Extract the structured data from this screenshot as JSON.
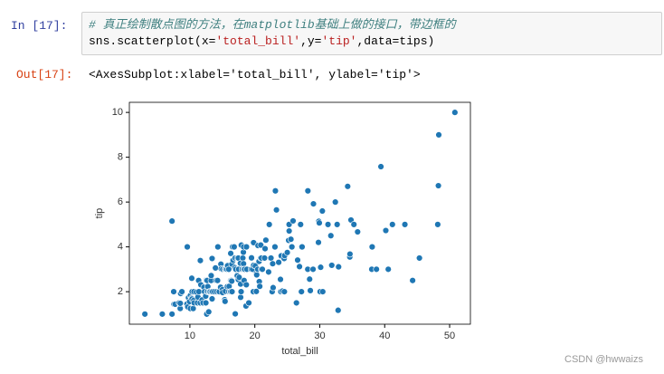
{
  "cells": {
    "in_prompt": "In  [17]:",
    "comment": "# 真正绘制散点图的方法，在matplotlib基础上做的接口，带边框的",
    "code_tokens": [
      "sns.scatterplot(x=",
      "'total_bill'",
      ",y=",
      "'tip'",
      ",data=tips)"
    ],
    "out_prompt": "Out[17]:",
    "output": "<AxesSubplot:xlabel='total_bill', ylabel='tip'>"
  },
  "watermark": "CSDN @hwwaizs",
  "chart_data": {
    "type": "scatter",
    "x_label": "total_bill",
    "y_label": "tip",
    "color": "#1f77b4",
    "xlim": [
      0.68,
      53.2
    ],
    "ylim": [
      0.55,
      10.45
    ],
    "xticks": [
      10,
      20,
      30,
      40,
      50
    ],
    "yticks": [
      2,
      4,
      6,
      8,
      10
    ],
    "x": [
      3.07,
      5.75,
      7.25,
      7.25,
      7.51,
      7.56,
      7.74,
      8.35,
      8.51,
      8.52,
      8.58,
      8.77,
      9.55,
      9.6,
      9.68,
      9.78,
      9.94,
      10.07,
      10.07,
      10.27,
      10.29,
      10.33,
      10.34,
      10.51,
      10.59,
      10.63,
      10.65,
      11.02,
      11.17,
      11.24,
      11.35,
      11.38,
      11.59,
      11.61,
      11.69,
      11.87,
      12.03,
      12.16,
      12.26,
      12.43,
      12.46,
      12.48,
      12.54,
      12.6,
      12.66,
      12.69,
      12.74,
      12.76,
      12.9,
      13.0,
      13.03,
      13.13,
      13.27,
      13.28,
      13.37,
      13.42,
      13.42,
      13.51,
      13.81,
      13.94,
      14.07,
      14.15,
      14.26,
      14.31,
      14.48,
      14.52,
      14.73,
      14.78,
      14.83,
      15.01,
      15.04,
      15.06,
      15.36,
      15.38,
      15.42,
      15.48,
      15.53,
      15.69,
      15.77,
      15.81,
      15.98,
      16.0,
      16.04,
      16.21,
      16.27,
      16.29,
      16.31,
      16.4,
      16.45,
      16.47,
      16.49,
      16.58,
      16.66,
      16.82,
      16.93,
      16.97,
      16.99,
      17.07,
      17.26,
      17.29,
      17.31,
      17.46,
      17.47,
      17.51,
      17.59,
      17.78,
      17.81,
      17.82,
      17.89,
      17.92,
      18.04,
      18.15,
      18.24,
      18.26,
      18.28,
      18.29,
      18.35,
      18.43,
      18.64,
      18.69,
      18.71,
      18.78,
      19.08,
      19.44,
      19.49,
      19.65,
      19.77,
      19.81,
      19.82,
      20.08,
      20.23,
      20.27,
      20.29,
      20.45,
      20.49,
      20.65,
      20.69,
      20.76,
      20.9,
      20.92,
      21.01,
      21.01,
      21.16,
      21.5,
      21.58,
      21.7,
      22.12,
      22.23,
      22.42,
      22.49,
      22.67,
      22.75,
      22.82,
      23.1,
      23.17,
      23.33,
      23.68,
      23.95,
      24.01,
      24.06,
      24.27,
      24.52,
      24.55,
      24.59,
      25.0,
      25.21,
      25.28,
      25.29,
      25.56,
      25.71,
      25.89,
      26.41,
      26.59,
      26.86,
      26.88,
      27.05,
      27.18,
      27.2,
      27.28,
      28.15,
      28.17,
      28.44,
      28.55,
      28.97,
      29.03,
      29.8,
      29.85,
      29.93,
      30.06,
      30.14,
      30.4,
      30.46,
      31.27,
      31.71,
      31.85,
      32.4,
      32.68,
      32.83,
      32.9,
      34.3,
      34.63,
      34.65,
      34.81,
      35.26,
      35.83,
      38.01,
      38.07,
      38.73,
      39.42,
      40.17,
      40.55,
      41.19,
      43.11,
      44.3,
      45.35,
      48.17,
      48.27,
      48.33,
      50.81
    ],
    "y": [
      1,
      1,
      1,
      5.15,
      2,
      1.44,
      1.44,
      1.5,
      1.25,
      1.48,
      1.92,
      2,
      1.45,
      4,
      1.32,
      1.73,
      1.56,
      1.83,
      1.25,
      1.71,
      2.6,
      1.67,
      2,
      1.25,
      1.61,
      2,
      1.5,
      1.98,
      1.5,
      1.76,
      2.5,
      2,
      1.5,
      3.39,
      2.31,
      1.63,
      1.5,
      2.2,
      2,
      1.8,
      1.5,
      2.52,
      2.5,
      1,
      2.5,
      2,
      2.01,
      2.23,
      1.1,
      2,
      2,
      2,
      2.5,
      2.72,
      2,
      3.48,
      1.68,
      2,
      2,
      3.06,
      2.5,
      2,
      2.5,
      4,
      2,
      2,
      2.2,
      3.23,
      3.02,
      2.09,
      1.96,
      3,
      1.64,
      3,
      1.57,
      2.02,
      3,
      3,
      2.23,
      3.16,
      3,
      2,
      2.24,
      2,
      2.5,
      3.71,
      2,
      2.5,
      2.47,
      3.23,
      2,
      4,
      3.4,
      4,
      3.07,
      3.5,
      1.01,
      3,
      2.74,
      2.71,
      3.5,
      2.54,
      3.5,
      3,
      2.64,
      3.27,
      2.34,
      1.75,
      2,
      4.08,
      3,
      3.5,
      3.76,
      3.25,
      4,
      3,
      2.5,
      3,
      1.36,
      2.31,
      4,
      3,
      1.5,
      3,
      3.51,
      3,
      2,
      4.19,
      3.18,
      3.15,
      2.01,
      2.83,
      2.75,
      3,
      4.06,
      3.35,
      2.45,
      2.24,
      3.5,
      4.08,
      3.5,
      3,
      3,
      3.5,
      3.92,
      4.3,
      2.88,
      5,
      3.48,
      3.5,
      2,
      3.25,
      2.18,
      4,
      6.5,
      5.65,
      3.31,
      2.55,
      2,
      3.6,
      2.03,
      3.48,
      2,
      3.61,
      3.75,
      4.29,
      5,
      4.71,
      4.34,
      4,
      5.16,
      1.5,
      3.41,
      3.14,
      3.12,
      5,
      2,
      4,
      4,
      3,
      6.5,
      2.56,
      2.05,
      3,
      5.92,
      4.2,
      5.14,
      5.07,
      2,
      3.09,
      5.6,
      2,
      5,
      4.5,
      3.18,
      6,
      5,
      1.17,
      3.11,
      6.7,
      3.55,
      3.68,
      5.2,
      5,
      4.67,
      3,
      4,
      3,
      7.58,
      4.73,
      3,
      5,
      5,
      2.5,
      3.5,
      5,
      6.73,
      9,
      10
    ]
  }
}
